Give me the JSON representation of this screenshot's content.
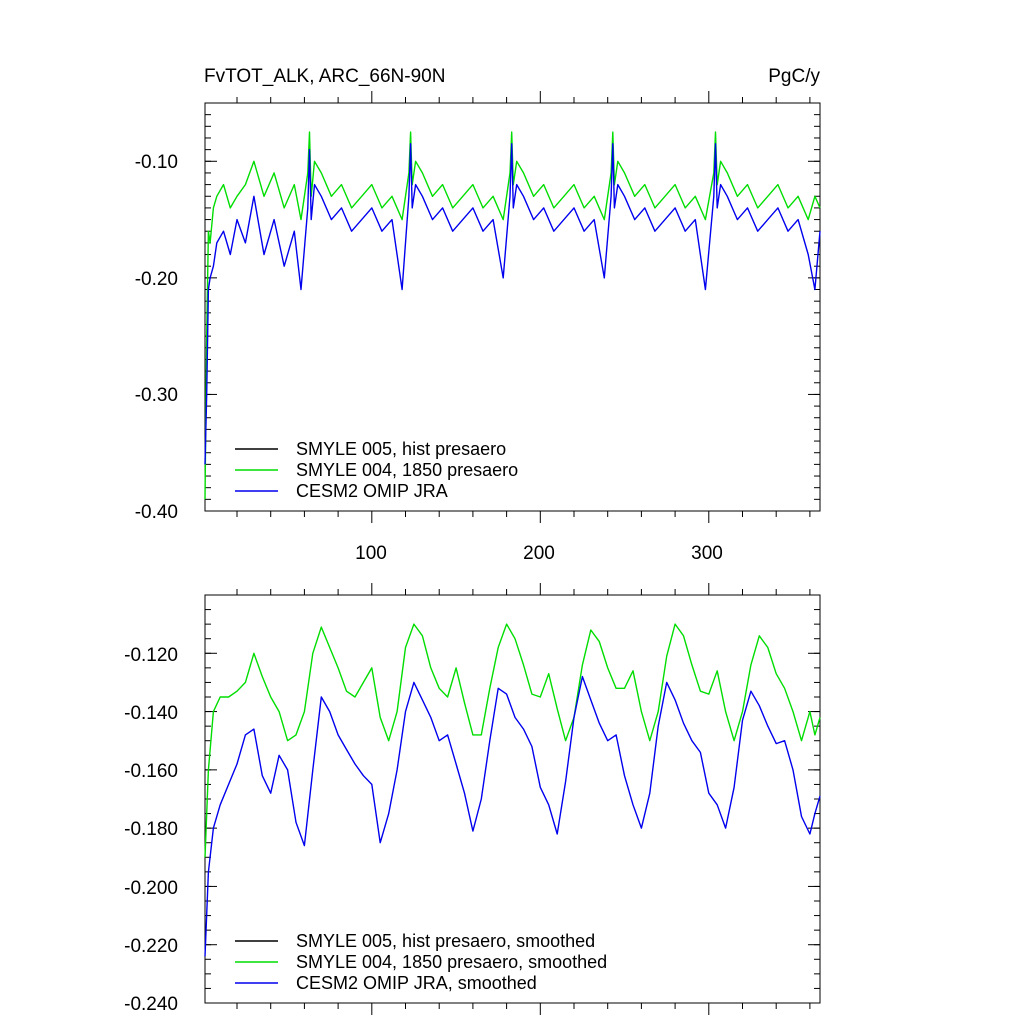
{
  "chart_data": [
    {
      "type": "line",
      "title": "FvTOT_ALK, ARC_66N-90N",
      "units": "PgC/y",
      "xlim": [
        1,
        366
      ],
      "ylim": [
        -0.4,
        -0.05
      ],
      "x_ticks": [
        100,
        200,
        300
      ],
      "x_tick_labels": [
        "100",
        "200",
        "300"
      ],
      "y_ticks": [
        -0.4,
        -0.3,
        -0.2,
        -0.1
      ],
      "y_tick_labels": [
        "-0.40",
        "-0.30",
        "-0.20",
        "-0.10"
      ],
      "series": [
        {
          "name": "SMYLE 005, hist presaero",
          "color": "#000000",
          "plotted": false,
          "x": [
            1,
            3
          ],
          "values": [
            -0.38,
            -0.16
          ]
        },
        {
          "name": "SMYLE 004, 1850 presaero",
          "color": "#00dd00",
          "x": [
            1,
            2,
            3,
            4,
            6,
            8,
            12,
            16,
            20,
            25,
            30,
            36,
            42,
            48,
            54,
            58,
            62,
            63,
            64,
            66,
            70,
            76,
            82,
            88,
            94,
            100,
            106,
            112,
            118,
            122,
            123,
            124,
            126,
            130,
            136,
            142,
            148,
            154,
            160,
            166,
            172,
            178,
            182,
            183,
            184,
            186,
            190,
            196,
            202,
            208,
            214,
            220,
            226,
            232,
            238,
            242,
            243,
            244,
            246,
            250,
            256,
            262,
            268,
            274,
            280,
            286,
            292,
            298,
            303,
            304,
            305,
            307,
            311,
            317,
            323,
            329,
            335,
            341,
            347,
            353,
            359,
            363,
            366
          ],
          "values": [
            -0.39,
            -0.25,
            -0.16,
            -0.17,
            -0.14,
            -0.13,
            -0.12,
            -0.14,
            -0.13,
            -0.12,
            -0.1,
            -0.13,
            -0.11,
            -0.14,
            -0.12,
            -0.15,
            -0.11,
            -0.075,
            -0.13,
            -0.1,
            -0.11,
            -0.13,
            -0.12,
            -0.14,
            -0.13,
            -0.12,
            -0.14,
            -0.13,
            -0.15,
            -0.11,
            -0.075,
            -0.12,
            -0.1,
            -0.11,
            -0.13,
            -0.12,
            -0.14,
            -0.13,
            -0.12,
            -0.14,
            -0.13,
            -0.15,
            -0.11,
            -0.075,
            -0.12,
            -0.1,
            -0.11,
            -0.13,
            -0.12,
            -0.14,
            -0.13,
            -0.12,
            -0.14,
            -0.13,
            -0.15,
            -0.11,
            -0.075,
            -0.12,
            -0.1,
            -0.11,
            -0.13,
            -0.12,
            -0.14,
            -0.13,
            -0.12,
            -0.14,
            -0.13,
            -0.15,
            -0.11,
            -0.075,
            -0.12,
            -0.1,
            -0.11,
            -0.13,
            -0.12,
            -0.14,
            -0.13,
            -0.12,
            -0.14,
            -0.13,
            -0.15,
            -0.13,
            -0.14
          ]
        },
        {
          "name": "CESM2 OMIP JRA",
          "color": "#0000ee",
          "x": [
            1,
            2,
            3,
            4,
            6,
            8,
            12,
            16,
            20,
            25,
            30,
            36,
            42,
            48,
            54,
            58,
            62,
            63,
            64,
            66,
            70,
            76,
            82,
            88,
            94,
            100,
            106,
            112,
            118,
            122,
            123,
            124,
            126,
            130,
            136,
            142,
            148,
            154,
            160,
            166,
            172,
            178,
            182,
            183,
            184,
            186,
            190,
            196,
            202,
            208,
            214,
            220,
            226,
            232,
            238,
            242,
            243,
            244,
            246,
            250,
            256,
            262,
            268,
            274,
            280,
            286,
            292,
            298,
            303,
            304,
            305,
            307,
            311,
            317,
            323,
            329,
            335,
            341,
            347,
            353,
            359,
            363,
            366
          ],
          "values": [
            -0.36,
            -0.3,
            -0.21,
            -0.2,
            -0.19,
            -0.17,
            -0.16,
            -0.18,
            -0.15,
            -0.17,
            -0.13,
            -0.18,
            -0.15,
            -0.19,
            -0.16,
            -0.21,
            -0.14,
            -0.09,
            -0.15,
            -0.12,
            -0.13,
            -0.15,
            -0.14,
            -0.16,
            -0.15,
            -0.14,
            -0.16,
            -0.15,
            -0.21,
            -0.13,
            -0.085,
            -0.14,
            -0.12,
            -0.13,
            -0.15,
            -0.14,
            -0.16,
            -0.15,
            -0.14,
            -0.16,
            -0.15,
            -0.2,
            -0.13,
            -0.085,
            -0.14,
            -0.12,
            -0.13,
            -0.15,
            -0.14,
            -0.16,
            -0.15,
            -0.14,
            -0.16,
            -0.15,
            -0.2,
            -0.13,
            -0.085,
            -0.14,
            -0.12,
            -0.13,
            -0.15,
            -0.14,
            -0.16,
            -0.15,
            -0.14,
            -0.16,
            -0.15,
            -0.21,
            -0.13,
            -0.085,
            -0.14,
            -0.12,
            -0.13,
            -0.15,
            -0.14,
            -0.16,
            -0.15,
            -0.14,
            -0.16,
            -0.15,
            -0.18,
            -0.21,
            -0.16
          ]
        }
      ]
    },
    {
      "type": "line",
      "title": "",
      "xlim": [
        1,
        366
      ],
      "ylim": [
        -0.24,
        -0.1
      ],
      "x_ticks": [
        100,
        200,
        300
      ],
      "y_ticks": [
        -0.24,
        -0.22,
        -0.2,
        -0.18,
        -0.16,
        -0.14,
        -0.12
      ],
      "y_tick_labels": [
        "-0.240",
        "-0.220",
        "-0.200",
        "-0.180",
        "-0.160",
        "-0.140",
        "-0.120"
      ],
      "series": [
        {
          "name": "SMYLE 005, hist presaero, smoothed",
          "color": "#000000",
          "plotted": false,
          "x": [
            1,
            3
          ],
          "values": [
            -0.19,
            -0.16
          ]
        },
        {
          "name": "SMYLE 004, 1850 presaero, smoothed",
          "color": "#00dd00",
          "x": [
            1,
            3,
            6,
            10,
            15,
            20,
            25,
            30,
            35,
            40,
            45,
            50,
            55,
            60,
            65,
            70,
            75,
            80,
            85,
            90,
            95,
            100,
            105,
            110,
            115,
            120,
            125,
            130,
            135,
            140,
            145,
            150,
            155,
            160,
            165,
            170,
            175,
            180,
            185,
            190,
            195,
            200,
            205,
            210,
            215,
            220,
            225,
            230,
            235,
            240,
            245,
            250,
            255,
            260,
            265,
            270,
            275,
            280,
            285,
            290,
            295,
            300,
            305,
            310,
            315,
            320,
            325,
            330,
            335,
            340,
            345,
            350,
            355,
            360,
            363,
            366
          ],
          "values": [
            -0.19,
            -0.16,
            -0.14,
            -0.135,
            -0.135,
            -0.133,
            -0.13,
            -0.12,
            -0.128,
            -0.135,
            -0.14,
            -0.15,
            -0.148,
            -0.14,
            -0.12,
            -0.111,
            -0.118,
            -0.125,
            -0.133,
            -0.135,
            -0.13,
            -0.125,
            -0.142,
            -0.15,
            -0.14,
            -0.118,
            -0.11,
            -0.114,
            -0.125,
            -0.132,
            -0.135,
            -0.125,
            -0.137,
            -0.148,
            -0.148,
            -0.132,
            -0.118,
            -0.11,
            -0.115,
            -0.124,
            -0.134,
            -0.135,
            -0.127,
            -0.139,
            -0.15,
            -0.142,
            -0.124,
            -0.112,
            -0.116,
            -0.125,
            -0.132,
            -0.132,
            -0.126,
            -0.14,
            -0.15,
            -0.14,
            -0.121,
            -0.11,
            -0.114,
            -0.124,
            -0.133,
            -0.134,
            -0.126,
            -0.14,
            -0.15,
            -0.14,
            -0.124,
            -0.114,
            -0.118,
            -0.127,
            -0.132,
            -0.14,
            -0.15,
            -0.14,
            -0.148,
            -0.142
          ]
        },
        {
          "name": "CESM2 OMIP JRA, smoothed",
          "color": "#0000ee",
          "x": [
            1,
            3,
            6,
            10,
            15,
            20,
            25,
            30,
            35,
            40,
            45,
            50,
            55,
            60,
            65,
            70,
            75,
            80,
            85,
            90,
            95,
            100,
            105,
            110,
            115,
            120,
            125,
            130,
            135,
            140,
            145,
            150,
            155,
            160,
            165,
            170,
            175,
            180,
            185,
            190,
            195,
            200,
            205,
            210,
            215,
            220,
            225,
            230,
            235,
            240,
            245,
            250,
            255,
            260,
            265,
            270,
            275,
            280,
            285,
            290,
            295,
            300,
            305,
            310,
            315,
            320,
            325,
            330,
            335,
            340,
            345,
            350,
            355,
            360,
            363,
            366
          ],
          "values": [
            -0.224,
            -0.195,
            -0.18,
            -0.172,
            -0.165,
            -0.158,
            -0.148,
            -0.146,
            -0.162,
            -0.168,
            -0.155,
            -0.16,
            -0.178,
            -0.186,
            -0.16,
            -0.135,
            -0.14,
            -0.148,
            -0.153,
            -0.158,
            -0.162,
            -0.165,
            -0.185,
            -0.175,
            -0.16,
            -0.14,
            -0.13,
            -0.136,
            -0.142,
            -0.15,
            -0.148,
            -0.158,
            -0.168,
            -0.181,
            -0.17,
            -0.15,
            -0.132,
            -0.134,
            -0.142,
            -0.146,
            -0.152,
            -0.166,
            -0.172,
            -0.182,
            -0.164,
            -0.142,
            -0.128,
            -0.136,
            -0.144,
            -0.15,
            -0.148,
            -0.162,
            -0.172,
            -0.18,
            -0.168,
            -0.145,
            -0.13,
            -0.136,
            -0.144,
            -0.15,
            -0.154,
            -0.168,
            -0.172,
            -0.18,
            -0.166,
            -0.143,
            -0.133,
            -0.138,
            -0.145,
            -0.151,
            -0.15,
            -0.16,
            -0.176,
            -0.182,
            -0.175,
            -0.169
          ]
        }
      ]
    }
  ]
}
